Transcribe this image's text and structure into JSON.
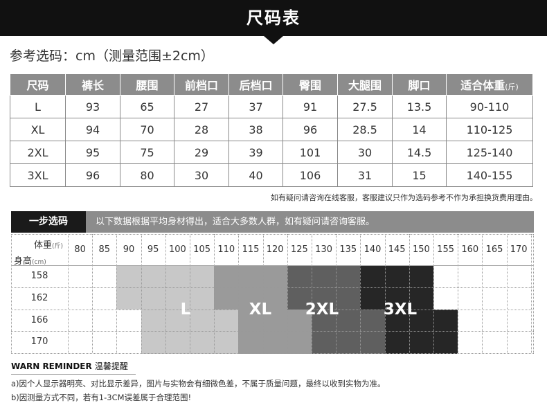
{
  "title": "尺码表",
  "reference_line": "参考选码：cm（测量范围±2cm）",
  "size_table": {
    "headers": [
      "尺码",
      "裤长",
      "腰围",
      "前档口",
      "后档口",
      "臀围",
      "大腿围",
      "脚口",
      "适合体重"
    ],
    "weight_unit": "(斤)",
    "rows": [
      [
        "L",
        "93",
        "65",
        "27",
        "37",
        "91",
        "27.5",
        "13.5",
        "90-110"
      ],
      [
        "XL",
        "94",
        "70",
        "28",
        "38",
        "96",
        "28.5",
        "14",
        "110-125"
      ],
      [
        "2XL",
        "95",
        "75",
        "29",
        "39",
        "101",
        "30",
        "14.5",
        "125-140"
      ],
      [
        "3XL",
        "96",
        "80",
        "30",
        "40",
        "106",
        "31",
        "15",
        "140-155"
      ]
    ]
  },
  "note": "如有疑问请咨询在线客服，客服建议只作为选码参考不作为承担换货费用理由。",
  "recommendation": {
    "tag": "一步选码",
    "text": "以下数据根据平均身材得出，适合大多数人群，如有疑问请咨询客服。",
    "weight_label": "体重",
    "weight_unit": "(斤)",
    "height_label": "身高",
    "height_unit": "(cm)",
    "weights": [
      "80",
      "85",
      "90",
      "95",
      "100",
      "105",
      "110",
      "115",
      "120",
      "125",
      "130",
      "135",
      "140",
      "145",
      "150",
      "155",
      "160",
      "165",
      "170"
    ],
    "heights": [
      "158",
      "162",
      "166",
      "170"
    ],
    "zones": [
      {
        "label": "L",
        "color": "#c8c8c8"
      },
      {
        "label": "XL",
        "color": "#9a9a9a"
      },
      {
        "label": "2XL",
        "color": "#5f5f5f"
      },
      {
        "label": "3XL",
        "color": "#262626"
      }
    ]
  },
  "warning": {
    "title": "WARN REMINDER",
    "title_cn": "温馨提醒",
    "lines": [
      "a)因个人显示器明亮、对比显示差异，图片与实物会有细微色差，不属于质量问题，最终以收到实物为准。",
      "b)因测量方式不同，若有1-3CM误差属于合理范围!"
    ]
  }
}
